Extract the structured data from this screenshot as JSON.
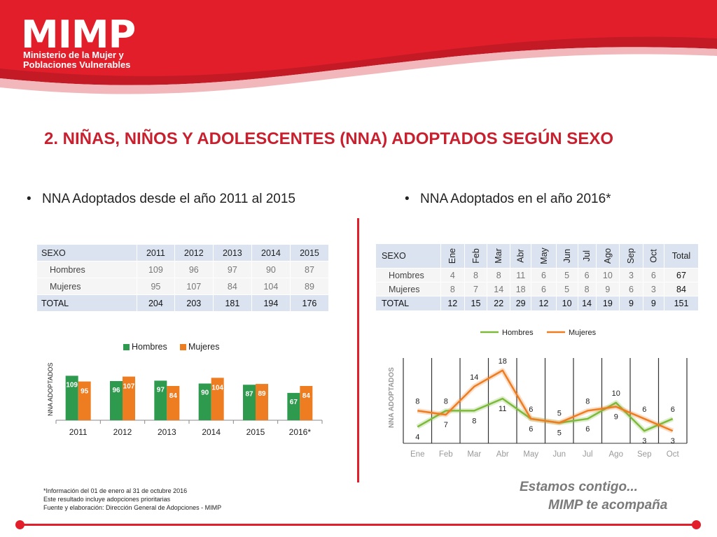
{
  "logo": {
    "name": "MIMP",
    "subtitle_line1": "Ministerio de la Mujer y",
    "subtitle_line2": "Poblaciones Vulnerables"
  },
  "title": "2. NIÑAS, NIÑOS Y ADOLESCENTES (NNA) ADOPTADOS SEGÚN SEXO",
  "bullets": {
    "left": "NNA Adoptados desde el año 2011 al 2015",
    "right": "NNA Adoptados en el año 2016*"
  },
  "table_left": {
    "header": [
      "SEXO",
      "2011",
      "2012",
      "2013",
      "2014",
      "2015"
    ],
    "rows": [
      {
        "label": "Hombres",
        "values": [
          "109",
          "96",
          "97",
          "90",
          "87"
        ]
      },
      {
        "label": "Mujeres",
        "values": [
          "95",
          "107",
          "84",
          "104",
          "89"
        ]
      }
    ],
    "total": {
      "label": "TOTAL",
      "values": [
        "204",
        "203",
        "181",
        "194",
        "176"
      ]
    }
  },
  "table_right": {
    "header": [
      "SEXO",
      "Ene",
      "Feb",
      "Mar",
      "Abr",
      "May",
      "Jun",
      "Jul",
      "Ago",
      "Sep",
      "Oct",
      "Total"
    ],
    "rows": [
      {
        "label": "Hombres",
        "values": [
          "4",
          "8",
          "8",
          "11",
          "6",
          "5",
          "6",
          "10",
          "3",
          "6",
          "67"
        ]
      },
      {
        "label": "Mujeres",
        "values": [
          "8",
          "7",
          "14",
          "18",
          "6",
          "5",
          "8",
          "9",
          "6",
          "3",
          "84"
        ]
      }
    ],
    "total": {
      "label": "TOTAL",
      "values": [
        "12",
        "15",
        "22",
        "29",
        "12",
        "10",
        "14",
        "19",
        "9",
        "9",
        "151"
      ]
    }
  },
  "chart_data": [
    {
      "type": "bar",
      "categories": [
        "2011",
        "2012",
        "2013",
        "2014",
        "2015",
        "2016*"
      ],
      "series": [
        {
          "name": "Hombres",
          "values": [
            109,
            96,
            97,
            90,
            87,
            67
          ],
          "color": "#2e9a4e"
        },
        {
          "name": "Mujeres",
          "values": [
            95,
            107,
            84,
            104,
            89,
            84
          ],
          "color": "#ee7d22"
        }
      ],
      "ylabel": "NNA ADOPTADOS",
      "ylim": [
        0,
        120
      ],
      "legend": "top",
      "data_labels": true
    },
    {
      "type": "line",
      "categories": [
        "Ene",
        "Feb",
        "Mar",
        "Abr",
        "May",
        "Jun",
        "Jul",
        "Ago",
        "Sep",
        "Oct"
      ],
      "series": [
        {
          "name": "Hombres",
          "values": [
            4,
            8,
            8,
            11,
            6,
            5,
            6,
            10,
            3,
            6
          ],
          "color": "#7dba3a"
        },
        {
          "name": "Mujeres",
          "values": [
            8,
            7,
            14,
            18,
            6,
            5,
            8,
            9,
            6,
            3
          ],
          "color": "#ee7d22"
        }
      ],
      "ylabel": "NNA ADOPTADOS",
      "ylim": [
        0,
        20
      ],
      "legend": "top",
      "data_labels": true,
      "grid": "vertical"
    }
  ],
  "notes": [
    "*Información del 01 de enero al 31 de octubre 2016",
    "Este resultado incluye adopciones prioritarias",
    "Fuente y elaboración: Dirección General de Adopciones - MIMP"
  ],
  "slogan": {
    "line1": "Estamos contigo...",
    "line2": "MIMP te acompaña"
  },
  "colors": {
    "brand_red": "#e21e2a",
    "title_red": "#c8202f",
    "table_header": "#dbe3f0"
  }
}
